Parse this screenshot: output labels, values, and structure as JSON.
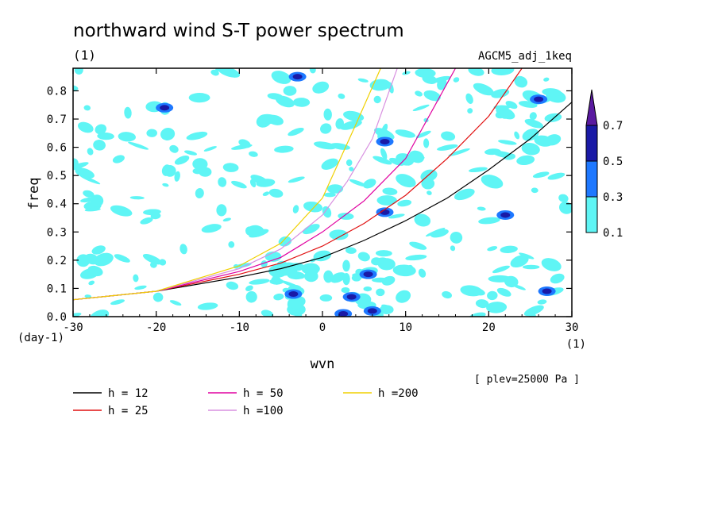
{
  "header": {
    "title": "northward wind S-T power spectrum",
    "subtitle": "(1)",
    "experiment": "AGCM5_adj_1keq",
    "level_note": "[ plev=25000 Pa ]"
  },
  "chart_data": {
    "type": "heatmap",
    "xlabel": "wvn",
    "ylabel": "freq",
    "x_unit": "(1)",
    "y_unit": "(day-1)",
    "xlim": [
      -30,
      30
    ],
    "ylim": [
      0,
      0.88
    ],
    "x_ticks": [
      "-30",
      "-20",
      "-10",
      "0",
      "10",
      "20",
      "30"
    ],
    "y_ticks": [
      "0.0",
      "0.1",
      "0.2",
      "0.3",
      "0.4",
      "0.5",
      "0.6",
      "0.7",
      "0.8"
    ],
    "colorbar": {
      "levels": [
        "0.1",
        "0.3",
        "0.5",
        "0.7"
      ],
      "colors": [
        "#5ff5f5",
        "#1e78ff",
        "#1a1aa6",
        "#5a1aa0"
      ],
      "extend": "max"
    },
    "dispersion_curves": [
      {
        "label": "h = 12",
        "color": "#000000",
        "x": [
          -30,
          -20,
          -10,
          -5,
          0,
          5,
          10,
          15,
          20,
          25,
          30
        ],
        "y": [
          0.06,
          0.09,
          0.14,
          0.17,
          0.21,
          0.27,
          0.34,
          0.42,
          0.52,
          0.63,
          0.76
        ]
      },
      {
        "label": "h = 25",
        "color": "#e01010",
        "x": [
          -30,
          -20,
          -10,
          -5,
          0,
          5,
          10,
          15,
          20,
          24
        ],
        "y": [
          0.06,
          0.09,
          0.15,
          0.19,
          0.25,
          0.33,
          0.43,
          0.56,
          0.71,
          0.88
        ]
      },
      {
        "label": "h = 50",
        "color": "#e000a0",
        "x": [
          -30,
          -20,
          -10,
          -5,
          0,
          5,
          10,
          16
        ],
        "y": [
          0.06,
          0.09,
          0.16,
          0.21,
          0.3,
          0.41,
          0.56,
          0.88
        ]
      },
      {
        "label": "h =100",
        "color": "#d890e0",
        "x": [
          -30,
          -20,
          -10,
          -5,
          0,
          3,
          6,
          9
        ],
        "y": [
          0.06,
          0.09,
          0.17,
          0.24,
          0.36,
          0.48,
          0.63,
          0.88
        ]
      },
      {
        "label": "h =200",
        "color": "#f0d000",
        "x": [
          -30,
          -20,
          -10,
          -5,
          0,
          2,
          4,
          7
        ],
        "y": [
          0.06,
          0.09,
          0.18,
          0.26,
          0.42,
          0.55,
          0.68,
          0.88
        ]
      }
    ],
    "contour_blobs": [
      {
        "x": -3.5,
        "y": 0.08,
        "level": 2
      },
      {
        "x": 3.5,
        "y": 0.07,
        "level": 2
      },
      {
        "x": 5.5,
        "y": 0.15,
        "level": 2
      },
      {
        "x": 7.5,
        "y": 0.37,
        "level": 2
      },
      {
        "x": 7.5,
        "y": 0.62,
        "level": 2
      },
      {
        "x": -19,
        "y": 0.74,
        "level": 2
      },
      {
        "x": 22,
        "y": 0.36,
        "level": 2
      },
      {
        "x": 26,
        "y": 0.77,
        "level": 2
      },
      {
        "x": -3,
        "y": 0.85,
        "level": 2
      },
      {
        "x": 2.5,
        "y": 0.01,
        "level": 2
      },
      {
        "x": 27,
        "y": 0.09,
        "level": 2
      },
      {
        "x": 6,
        "y": 0.02,
        "level": 2
      }
    ]
  }
}
